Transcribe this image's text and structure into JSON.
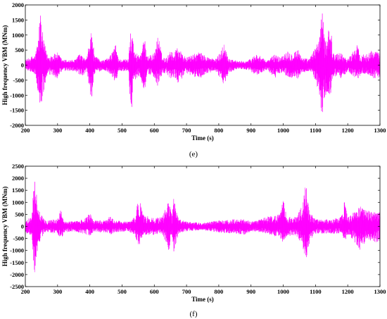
{
  "chart_data": [
    {
      "type": "line",
      "panel_label": "(e)",
      "xlabel": "Time (s)",
      "ylabel": "High frequency VBM (MNm)",
      "xlim": [
        200,
        1300
      ],
      "ylim": [
        -2000,
        2000
      ],
      "x_ticks": [
        200,
        300,
        400,
        500,
        600,
        700,
        800,
        900,
        1000,
        1100,
        1200,
        1300
      ],
      "y_ticks": [
        -2000,
        -1500,
        -1000,
        -500,
        0,
        500,
        1000,
        1500,
        2000
      ],
      "grid": false,
      "color": "#ff00ff",
      "series": [
        {
          "signal": "oscillating",
          "envelope": [
            [
              200,
              170,
              130
            ],
            [
              230,
              350,
              300
            ],
            [
              240,
              850,
              950
            ],
            [
              246,
              1850,
              1600
            ],
            [
              255,
              900,
              1000
            ],
            [
              270,
              300,
              300
            ],
            [
              285,
              350,
              380
            ],
            [
              300,
              420,
              450
            ],
            [
              315,
              180,
              200
            ],
            [
              355,
              180,
              200
            ],
            [
              365,
              400,
              330
            ],
            [
              375,
              300,
              450
            ],
            [
              390,
              200,
              200
            ],
            [
              405,
              1200,
              1200
            ],
            [
              415,
              300,
              300
            ],
            [
              440,
              160,
              160
            ],
            [
              460,
              250,
              250
            ],
            [
              480,
              700,
              580
            ],
            [
              490,
              200,
              200
            ],
            [
              520,
              200,
              200
            ],
            [
              528,
              1700,
              1700
            ],
            [
              538,
              450,
              500
            ],
            [
              555,
              350,
              350
            ],
            [
              570,
              870,
              870
            ],
            [
              580,
              300,
              300
            ],
            [
              600,
              400,
              400
            ],
            [
              612,
              1050,
              750
            ],
            [
              625,
              250,
              300
            ],
            [
              640,
              250,
              300
            ],
            [
              650,
              570,
              500
            ],
            [
              660,
              350,
              400
            ],
            [
              672,
              700,
              600
            ],
            [
              685,
              400,
              450
            ],
            [
              700,
              250,
              300
            ],
            [
              740,
              450,
              450
            ],
            [
              760,
              300,
              300
            ],
            [
              790,
              200,
              200
            ],
            [
              805,
              430,
              450
            ],
            [
              815,
              750,
              750
            ],
            [
              830,
              250,
              250
            ],
            [
              860,
              130,
              120
            ],
            [
              890,
              150,
              150
            ],
            [
              920,
              400,
              350
            ],
            [
              932,
              250,
              250
            ],
            [
              950,
              150,
              150
            ],
            [
              975,
              380,
              450
            ],
            [
              990,
              250,
              250
            ],
            [
              1010,
              500,
              350
            ],
            [
              1025,
              400,
              450
            ],
            [
              1045,
              550,
              450
            ],
            [
              1060,
              250,
              250
            ],
            [
              1080,
              200,
              200
            ],
            [
              1100,
              600,
              500
            ],
            [
              1112,
              1000,
              1050
            ],
            [
              1120,
              1850,
              1800
            ],
            [
              1130,
              800,
              1000
            ],
            [
              1145,
              1500,
              1100
            ],
            [
              1155,
              400,
              400
            ],
            [
              1180,
              400,
              450
            ],
            [
              1200,
              200,
              200
            ],
            [
              1230,
              700,
              500
            ],
            [
              1240,
              300,
              300
            ],
            [
              1260,
              450,
              300
            ],
            [
              1280,
              500,
              450
            ],
            [
              1300,
              400,
              400
            ]
          ]
        }
      ]
    },
    {
      "type": "line",
      "panel_label": "(f)",
      "xlabel": "Time (s)",
      "ylabel": "High frequency VBM (MNm)",
      "xlim": [
        200,
        1300
      ],
      "ylim": [
        -2500,
        2500
      ],
      "x_ticks": [
        200,
        300,
        400,
        500,
        600,
        700,
        800,
        900,
        1000,
        1100,
        1200,
        1300
      ],
      "y_ticks": [
        -2500,
        -2000,
        -1500,
        -1000,
        -500,
        0,
        500,
        1000,
        1500,
        2000,
        2500
      ],
      "grid": false,
      "color": "#ff00ff",
      "series": [
        {
          "signal": "oscillating",
          "envelope": [
            [
              200,
              250,
              250
            ],
            [
              220,
              400,
              400
            ],
            [
              228,
              2250,
              2100
            ],
            [
              240,
              700,
              800
            ],
            [
              260,
              250,
              250
            ],
            [
              300,
              300,
              300
            ],
            [
              312,
              850,
              600
            ],
            [
              320,
              250,
              250
            ],
            [
              350,
              200,
              200
            ],
            [
              380,
              300,
              300
            ],
            [
              400,
              600,
              400
            ],
            [
              410,
              250,
              250
            ],
            [
              450,
              250,
              250
            ],
            [
              465,
              500,
              350
            ],
            [
              475,
              250,
              250
            ],
            [
              520,
              200,
              200
            ],
            [
              540,
              400,
              400
            ],
            [
              552,
              1250,
              850
            ],
            [
              565,
              500,
              400
            ],
            [
              600,
              350,
              350
            ],
            [
              625,
              400,
              300
            ],
            [
              645,
              1100,
              1000
            ],
            [
              655,
              450,
              450
            ],
            [
              660,
              1250,
              1100
            ],
            [
              675,
              300,
              300
            ],
            [
              700,
              200,
              200
            ],
            [
              750,
              150,
              150
            ],
            [
              800,
              250,
              250
            ],
            [
              850,
              300,
              300
            ],
            [
              880,
              300,
              350
            ],
            [
              900,
              200,
              200
            ],
            [
              930,
              300,
              250
            ],
            [
              950,
              400,
              300
            ],
            [
              990,
              500,
              500
            ],
            [
              1000,
              1100,
              850
            ],
            [
              1012,
              400,
              400
            ],
            [
              1040,
              400,
              400
            ],
            [
              1060,
              900,
              800
            ],
            [
              1070,
              1850,
              1600
            ],
            [
              1082,
              600,
              600
            ],
            [
              1100,
              300,
              300
            ],
            [
              1150,
              300,
              300
            ],
            [
              1180,
              400,
              300
            ],
            [
              1190,
              1100,
              650
            ],
            [
              1200,
              400,
              350
            ],
            [
              1220,
              600,
              600
            ],
            [
              1240,
              850,
              1100
            ],
            [
              1260,
              700,
              500
            ],
            [
              1280,
              600,
              700
            ],
            [
              1300,
              600,
              600
            ]
          ]
        }
      ]
    }
  ]
}
